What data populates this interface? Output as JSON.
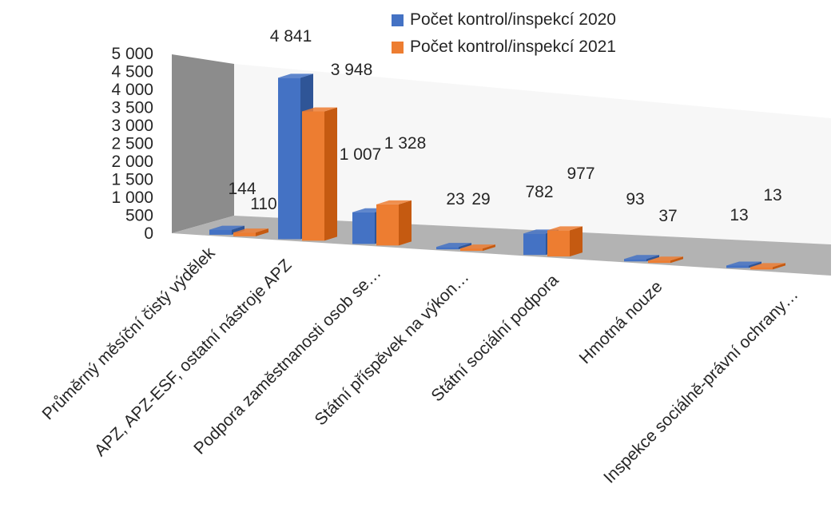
{
  "chart_data": {
    "type": "bar",
    "categories": [
      "Průměrný měsíční čistý výdělek",
      "APZ, APZ-ESF, ostatní nástroje APZ",
      "Podpora zaměstnanosti osob se…",
      "Státní příspěvek na výkon…",
      "Státní sociální podpora",
      "Hmotná nouze",
      "Inspekce sociálně-právní ochrany…"
    ],
    "series": [
      {
        "name": "Počet  kontrol/inspekcí 2020",
        "color": "#4472C4",
        "side": "#2F5597",
        "values": [
          144,
          4841,
          1007,
          23,
          782,
          93,
          13
        ],
        "labels": [
          "144",
          "4 841",
          "1 007",
          "23",
          "782",
          "93",
          "13"
        ]
      },
      {
        "name": "Počet kontrol/inspekcí 2021",
        "color": "#ED7D31",
        "side": "#C55A11",
        "values": [
          110,
          3948,
          1328,
          29,
          977,
          37,
          13
        ],
        "labels": [
          "110",
          "3 948",
          "1 328",
          "29",
          "977",
          "37",
          "13"
        ]
      }
    ],
    "yticks": [
      "0",
      "500",
      "1 000",
      "1 500",
      "2 000",
      "2 500",
      "3 000",
      "3 500",
      "4 000",
      "4 500",
      "5 000"
    ],
    "ylim": [
      0,
      5000
    ],
    "legend_position": "top-right",
    "grid": false
  }
}
